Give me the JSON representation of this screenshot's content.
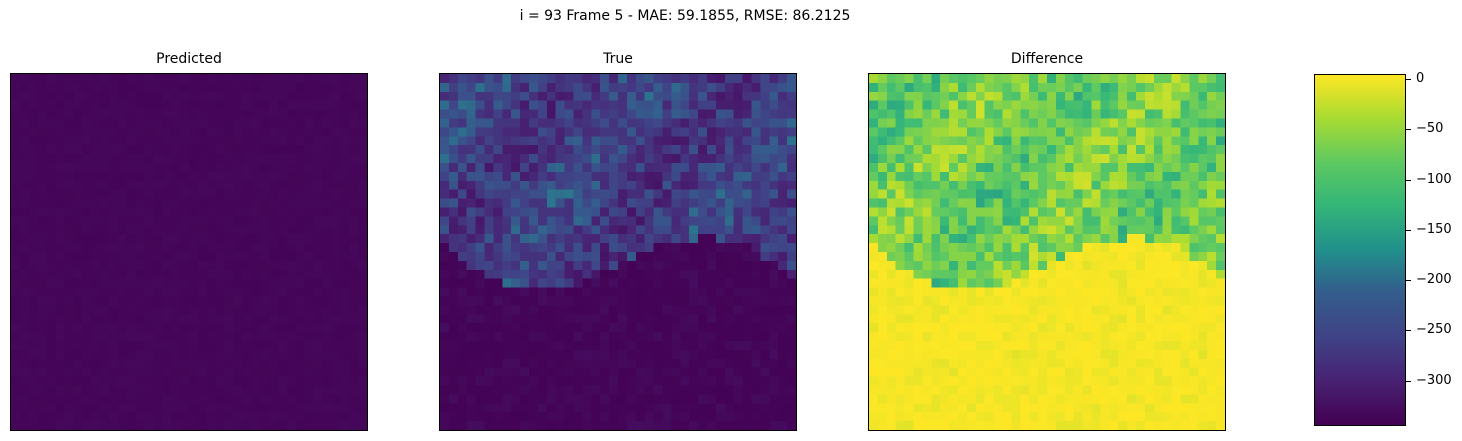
{
  "chart_data": {
    "type": "heatmap",
    "title": "i = 93 Frame 5 - MAE: 59.1855, RMSE: 86.2125",
    "colormap": "viridis",
    "value_range": [
      -345,
      5
    ],
    "grid_size": 40,
    "panels": [
      {
        "title": "Predicted",
        "pattern": "uniform-low",
        "approx_value": -340
      },
      {
        "title": "True",
        "pattern": "variable-upper-low-lower",
        "approx_value_upper": -290,
        "approx_value_lower": -345
      },
      {
        "title": "Difference",
        "pattern": "negative-upper-near-zero-lower",
        "approx_value_upper": -120,
        "approx_value_lower": 0
      }
    ],
    "colorbar": {
      "ticks": [
        0,
        -50,
        -100,
        -150,
        -200,
        -250,
        -300
      ],
      "tick_labels": [
        "0",
        "−50",
        "−100",
        "−150",
        "−200",
        "−250",
        "−300"
      ]
    }
  }
}
